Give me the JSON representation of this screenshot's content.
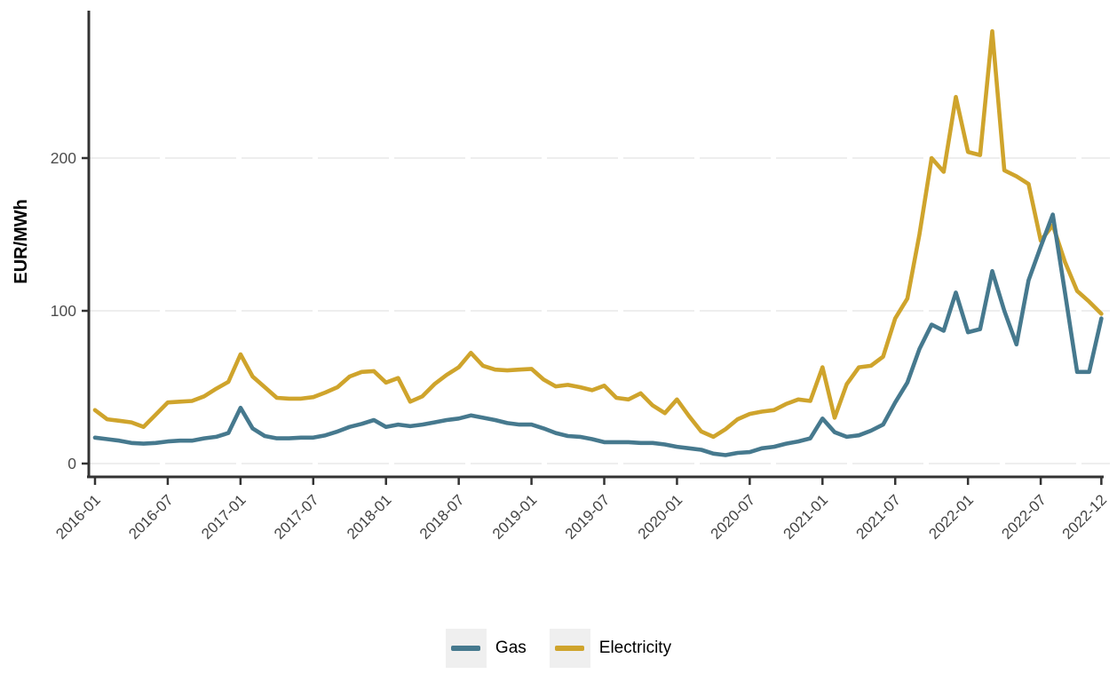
{
  "chart_data": {
    "type": "line",
    "ylabel": "EUR/MWh",
    "y_ticks": [
      0,
      100,
      200
    ],
    "ylim": [
      0,
      290
    ],
    "grid": "horizontal",
    "legend_position": "bottom",
    "x_tick_labels": [
      "2016-01",
      "2016-07",
      "2017-01",
      "2017-07",
      "2018-01",
      "2018-07",
      "2019-01",
      "2019-07",
      "2020-01",
      "2020-07",
      "2021-01",
      "2021-07",
      "2022-01",
      "2022-07",
      "2022-12"
    ],
    "x_tick_indices": [
      0,
      6,
      12,
      18,
      24,
      30,
      36,
      42,
      48,
      54,
      60,
      66,
      72,
      78,
      83
    ],
    "x_months": [
      "2016-01",
      "2016-02",
      "2016-03",
      "2016-04",
      "2016-05",
      "2016-06",
      "2016-07",
      "2016-08",
      "2016-09",
      "2016-10",
      "2016-11",
      "2016-12",
      "2017-01",
      "2017-02",
      "2017-03",
      "2017-04",
      "2017-05",
      "2017-06",
      "2017-07",
      "2017-08",
      "2017-09",
      "2017-10",
      "2017-11",
      "2017-12",
      "2018-01",
      "2018-02",
      "2018-03",
      "2018-04",
      "2018-05",
      "2018-06",
      "2018-07",
      "2018-08",
      "2018-09",
      "2018-10",
      "2018-11",
      "2018-12",
      "2019-01",
      "2019-02",
      "2019-03",
      "2019-04",
      "2019-05",
      "2019-06",
      "2019-07",
      "2019-08",
      "2019-09",
      "2019-10",
      "2019-11",
      "2019-12",
      "2020-01",
      "2020-02",
      "2020-03",
      "2020-04",
      "2020-05",
      "2020-06",
      "2020-07",
      "2020-08",
      "2020-09",
      "2020-10",
      "2020-11",
      "2020-12",
      "2021-01",
      "2021-02",
      "2021-03",
      "2021-04",
      "2021-05",
      "2021-06",
      "2021-07",
      "2021-08",
      "2021-09",
      "2021-10",
      "2021-11",
      "2021-12",
      "2022-01",
      "2022-02",
      "2022-03",
      "2022-04",
      "2022-05",
      "2022-06",
      "2022-07",
      "2022-08",
      "2022-09",
      "2022-10",
      "2022-11",
      "2022-12"
    ],
    "series": [
      {
        "name": "Gas",
        "color": "#46798E",
        "values": [
          17,
          16,
          15,
          13.5,
          13,
          13.5,
          14.5,
          15,
          15,
          16.5,
          17.5,
          20,
          36.5,
          23,
          18,
          16.5,
          16.5,
          17,
          17,
          18.5,
          21,
          24,
          26,
          28.5,
          24,
          25.5,
          24.5,
          25.5,
          27,
          28.5,
          29.5,
          31.5,
          30,
          28.5,
          26.5,
          25.5,
          25.5,
          23,
          20,
          18,
          17.5,
          16,
          14,
          14,
          14,
          13.5,
          13.5,
          12.5,
          11,
          10,
          9,
          6.5,
          5.5,
          7,
          7.5,
          10,
          11,
          13,
          14.5,
          16.5,
          29.5,
          20.5,
          17.5,
          18.5,
          21.5,
          25.5,
          40,
          53,
          75,
          91,
          87,
          112,
          86,
          88,
          126,
          100,
          78,
          120,
          142,
          163,
          112,
          60,
          60,
          95
        ]
      },
      {
        "name": "Electricity",
        "color": "#CFA42C",
        "values": [
          35,
          29,
          28,
          27,
          24,
          32,
          40,
          40.5,
          41,
          44,
          49,
          53.5,
          71.5,
          57,
          50,
          43,
          42.5,
          42.5,
          43.5,
          46.5,
          50,
          57,
          60,
          60.5,
          53,
          56,
          40.5,
          44,
          52,
          58,
          63,
          72.5,
          64,
          61.5,
          61,
          61.5,
          62,
          55,
          50.5,
          51.5,
          50,
          48,
          51,
          43,
          42,
          46,
          38,
          33,
          42,
          31,
          21,
          17.5,
          22.5,
          29,
          32.5,
          34,
          35,
          39,
          42,
          41,
          63,
          30,
          52,
          63,
          64,
          70,
          95,
          108,
          150,
          200,
          191,
          240,
          204,
          202,
          283,
          192,
          188,
          183,
          146,
          156,
          132,
          113,
          106,
          98
        ]
      }
    ],
    "axis_color": "#333333",
    "grid_color": "#E9E9E9",
    "tick_label_color": "#4D4D4D"
  }
}
